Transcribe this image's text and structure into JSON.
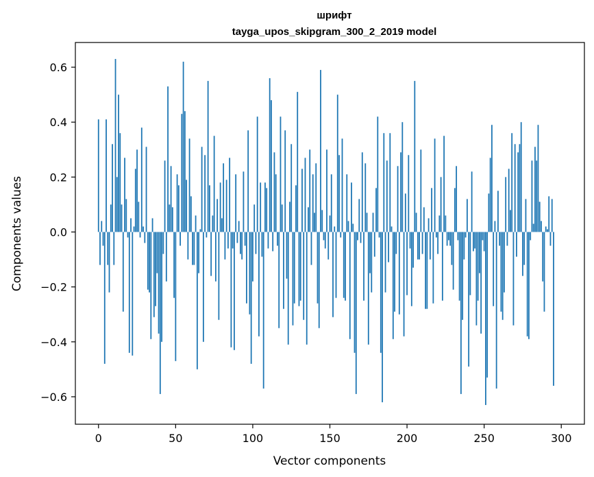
{
  "chart_data": {
    "type": "bar",
    "title": "шрифт",
    "subtitle": "tayga_upos_skipgram_300_2_2019 model",
    "xlabel": "Vector components",
    "ylabel": "Components values",
    "xlim": [
      -15,
      315
    ],
    "ylim": [
      -0.7,
      0.69
    ],
    "xticks": [
      0,
      50,
      100,
      150,
      200,
      250,
      300
    ],
    "xtick_labels": [
      "0",
      "50",
      "100",
      "150",
      "200",
      "250",
      "300"
    ],
    "yticks": [
      -0.6,
      -0.4,
      -0.2,
      0.0,
      0.2,
      0.4,
      0.6
    ],
    "ytick_labels": [
      "−0.6",
      "−0.4",
      "−0.2",
      "0.0",
      "0.2",
      "0.4",
      "0.6"
    ],
    "bar_color": "#1f77b4",
    "grid": false,
    "values": [
      0.41,
      -0.12,
      0.04,
      -0.05,
      -0.48,
      0.41,
      -0.12,
      -0.22,
      0.1,
      0.32,
      -0.12,
      0.63,
      0.2,
      0.5,
      0.36,
      0.1,
      -0.29,
      0.27,
      0.12,
      -0.02,
      -0.44,
      0.05,
      -0.45,
      0.02,
      0.23,
      0.3,
      0.11,
      -0.02,
      0.38,
      0.02,
      -0.04,
      0.31,
      -0.21,
      -0.22,
      -0.39,
      0.05,
      -0.31,
      -0.27,
      -0.15,
      -0.37,
      -0.59,
      -0.4,
      -0.08,
      0.26,
      -0.18,
      0.53,
      0.1,
      0.24,
      0.09,
      -0.24,
      -0.47,
      0.21,
      0.17,
      -0.05,
      0.43,
      0.62,
      0.44,
      0.19,
      -0.1,
      0.34,
      0.13,
      -0.12,
      -0.12,
      0.06,
      -0.5,
      -0.15,
      0.01,
      0.31,
      -0.4,
      0.28,
      -0.02,
      0.55,
      0.17,
      -0.16,
      0.06,
      0.35,
      -0.18,
      0.12,
      -0.32,
      0.18,
      0.05,
      0.25,
      -0.1,
      0.19,
      -0.06,
      0.27,
      -0.42,
      -0.06,
      -0.43,
      0.21,
      -0.04,
      0.04,
      -0.08,
      -0.1,
      0.22,
      -0.05,
      -0.26,
      0.37,
      -0.3,
      -0.48,
      -0.18,
      0.1,
      -0.08,
      0.42,
      -0.38,
      0.18,
      -0.09,
      -0.57,
      0.18,
      0.16,
      -0.06,
      0.56,
      0.48,
      -0.07,
      0.29,
      0.21,
      -0.05,
      -0.35,
      0.42,
      0.1,
      -0.28,
      0.37,
      -0.17,
      -0.41,
      0.11,
      0.32,
      -0.34,
      -0.26,
      0.17,
      0.51,
      -0.27,
      -0.25,
      0.23,
      -0.32,
      0.27,
      -0.41,
      0.09,
      0.3,
      -0.12,
      0.21,
      0.07,
      0.25,
      -0.26,
      -0.35,
      0.59,
      0.08,
      -0.03,
      -0.06,
      0.3,
      -0.1,
      0.06,
      0.21,
      -0.31,
      0.02,
      -0.24,
      0.5,
      0.28,
      -0.02,
      0.34,
      -0.24,
      -0.25,
      0.21,
      0.04,
      -0.39,
      0.18,
      0.03,
      -0.44,
      -0.59,
      -0.03,
      0.12,
      -0.04,
      0.29,
      -0.25,
      0.25,
      0.07,
      -0.41,
      -0.15,
      -0.22,
      0.07,
      -0.09,
      0.16,
      0.42,
      -0.02,
      -0.44,
      -0.62,
      0.36,
      -0.22,
      0.26,
      -0.11,
      0.36,
      0.02,
      -0.39,
      -0.29,
      -0.08,
      0.24,
      -0.3,
      0.29,
      0.4,
      -0.38,
      0.14,
      -0.23,
      0.28,
      -0.06,
      -0.27,
      -0.13,
      0.55,
      0.07,
      -0.1,
      -0.1,
      0.3,
      -0.08,
      0.09,
      -0.28,
      -0.28,
      0.05,
      -0.1,
      0.16,
      -0.26,
      0.34,
      -0.02,
      -0.08,
      0.06,
      0.2,
      -0.25,
      0.35,
      0.06,
      -0.05,
      -0.03,
      -0.05,
      -0.12,
      -0.21,
      0.16,
      0.24,
      -0.03,
      -0.25,
      -0.59,
      -0.32,
      -0.1,
      -0.02,
      0.12,
      -0.49,
      -0.23,
      0.22,
      -0.07,
      -0.06,
      -0.34,
      -0.25,
      -0.15,
      -0.37,
      -0.03,
      -0.07,
      -0.63,
      -0.53,
      0.14,
      0.27,
      0.39,
      -0.27,
      0.04,
      -0.57,
      0.15,
      -0.05,
      -0.29,
      -0.32,
      -0.22,
      0.2,
      -0.05,
      0.23,
      0.08,
      0.36,
      -0.34,
      0.32,
      -0.09,
      0.29,
      0.32,
      0.4,
      -0.16,
      -0.12,
      0.12,
      -0.38,
      -0.39,
      -0.03,
      0.26,
      0.03,
      0.31,
      0.26,
      0.39,
      0.11,
      0.04,
      -0.18,
      -0.29,
      0.02,
      0.01,
      0.13,
      -0.05,
      0.12,
      -0.56
    ]
  }
}
